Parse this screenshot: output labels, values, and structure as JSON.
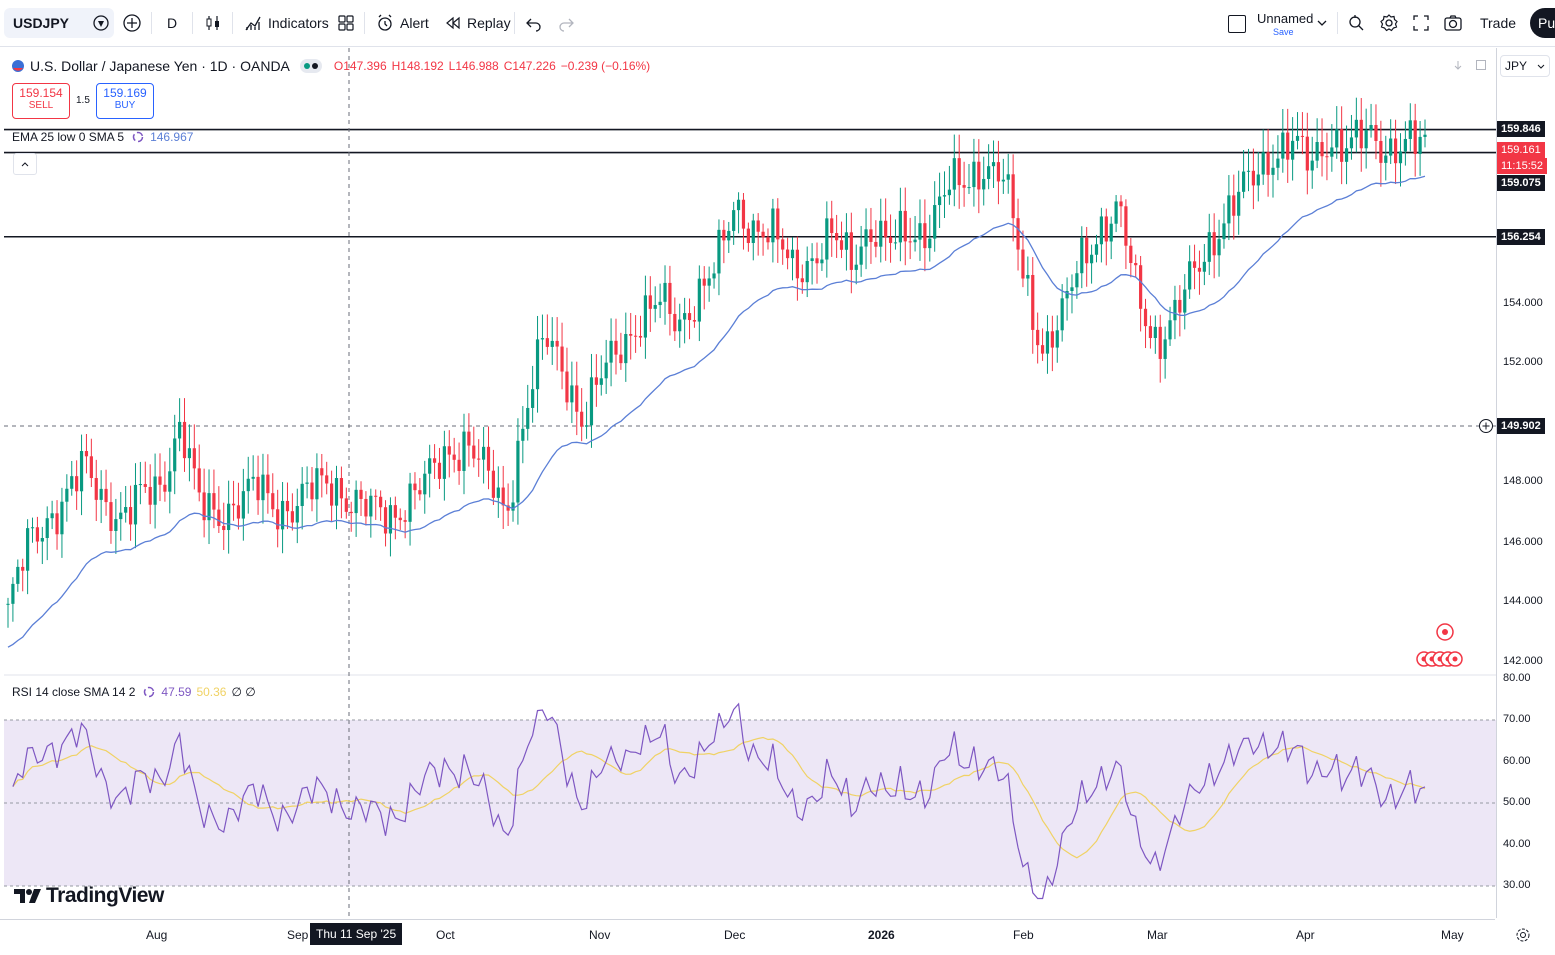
{
  "toolbar": {
    "symbol": "USDJPY",
    "interval": "D",
    "indicators_label": "Indicators",
    "alert_label": "Alert",
    "replay_label": "Replay",
    "layout_name": "Unnamed",
    "save_label": "Save",
    "trade_label": "Trade",
    "publish_label": "Pu"
  },
  "legend": {
    "title": "U.S. Dollar / Japanese Yen · 1D · OANDA",
    "open": "O147.396",
    "high": "H148.192",
    "low": "L146.988",
    "close": "C147.226",
    "change": "−0.239 (−0.16%)",
    "sell_price": "159.154",
    "sell_label": "SELL",
    "spread": "1.5",
    "buy_price": "159.169",
    "buy_label": "BUY",
    "ema_label": "EMA 25 low 0 SMA 5",
    "ema_value": "146.967",
    "rsi_label": "RSI 14 close SMA 14 2",
    "rsi_value": "47.59",
    "rsi_sma_value": "50.36",
    "rsi_extra": "∅ ∅"
  },
  "currency": "JPY",
  "price_axis": [
    "154.000",
    "152.000",
    "148.000",
    "146.000",
    "144.000",
    "142.000"
  ],
  "rsi_axis": [
    "80.00",
    "70.00",
    "60.00",
    "50.00",
    "40.00",
    "30.00"
  ],
  "price_tags": {
    "h1": "159.846",
    "last": "159.161",
    "countdown": "11:15:52",
    "h2": "159.075",
    "h3": "156.254",
    "crosshair": "149.902"
  },
  "time_axis": [
    "Aug",
    "Sep",
    "Oct",
    "Nov",
    "Dec",
    "2026",
    "Feb",
    "Mar",
    "Apr",
    "May"
  ],
  "crosshair_date": "Thu 11 Sep '25",
  "brand": "TradingView",
  "colors": {
    "up": "#089981",
    "down": "#f23645",
    "ema": "#5b7fd6",
    "rsi": "#7e57c2",
    "rsi_sma": "#f0d264",
    "rsi_band": "#ede7f6"
  },
  "chart_data": {
    "type": "candlestick",
    "symbol": "USDJPY",
    "timeframe": "1D",
    "ylim": [
      141,
      162
    ],
    "horizontal_lines": [
      159.846,
      159.075,
      156.254
    ],
    "close_series": [
      {
        "x": "Jul",
        "y": 143.7
      },
      {
        "x": "Jul",
        "y": 145.8
      },
      {
        "x": "Jul",
        "y": 146.8
      },
      {
        "x": "Jul",
        "y": 147.5
      },
      {
        "x": "Jul",
        "y": 148.5
      },
      {
        "x": "Aug",
        "y": 147.5
      },
      {
        "x": "Aug",
        "y": 146.8
      },
      {
        "x": "Aug",
        "y": 147.5
      },
      {
        "x": "Aug",
        "y": 148.0
      },
      {
        "x": "Aug",
        "y": 150.0
      },
      {
        "x": "Aug",
        "y": 147.2
      },
      {
        "x": "Aug",
        "y": 147.0
      },
      {
        "x": "Aug",
        "y": 147.4
      },
      {
        "x": "Aug",
        "y": 147.8
      },
      {
        "x": "Aug",
        "y": 147.2
      },
      {
        "x": "Sep",
        "y": 147.3
      },
      {
        "x": "Sep",
        "y": 147.8
      },
      {
        "x": "Sep",
        "y": 148.0
      },
      {
        "x": "Sep",
        "y": 147.4
      },
      {
        "x": "Sep",
        "y": 147.0
      },
      {
        "x": "Sep",
        "y": 146.9
      },
      {
        "x": "Sep",
        "y": 147.6
      },
      {
        "x": "Sep",
        "y": 148.1
      },
      {
        "x": "Sep",
        "y": 149.0
      },
      {
        "x": "Oct",
        "y": 149.5
      },
      {
        "x": "Oct",
        "y": 148.2
      },
      {
        "x": "Oct",
        "y": 146.9
      },
      {
        "x": "Oct",
        "y": 150.5
      },
      {
        "x": "Oct",
        "y": 152.8
      },
      {
        "x": "Oct",
        "y": 151.8
      },
      {
        "x": "Oct",
        "y": 150.2
      },
      {
        "x": "Oct",
        "y": 151.5
      },
      {
        "x": "Oct",
        "y": 152.6
      },
      {
        "x": "Nov",
        "y": 153.6
      },
      {
        "x": "Nov",
        "y": 154.0
      },
      {
        "x": "Nov",
        "y": 153.3
      },
      {
        "x": "Nov",
        "y": 154.4
      },
      {
        "x": "Nov",
        "y": 155.2
      },
      {
        "x": "Nov",
        "y": 157.3
      },
      {
        "x": "Nov",
        "y": 156.6
      },
      {
        "x": "Nov",
        "y": 156.2
      },
      {
        "x": "Dec",
        "y": 155.2
      },
      {
        "x": "Dec",
        "y": 155.6
      },
      {
        "x": "Dec",
        "y": 156.2
      },
      {
        "x": "Dec",
        "y": 155.4
      },
      {
        "x": "Dec",
        "y": 156.7
      },
      {
        "x": "Dec",
        "y": 155.9
      },
      {
        "x": "Dec",
        "y": 156.3
      },
      {
        "x": "Dec",
        "y": 156.6
      },
      {
        "x": "Dec",
        "y": 157.8
      },
      {
        "x": "Jan",
        "y": 158.0
      },
      {
        "x": "Jan",
        "y": 158.8
      },
      {
        "x": "Jan",
        "y": 158.2
      },
      {
        "x": "Jan",
        "y": 155.0
      },
      {
        "x": "Jan",
        "y": 152.6
      },
      {
        "x": "Jan",
        "y": 153.4
      },
      {
        "x": "Feb",
        "y": 155.4
      },
      {
        "x": "Feb",
        "y": 156.6
      },
      {
        "x": "Feb",
        "y": 157.1
      },
      {
        "x": "Feb",
        "y": 154.2
      },
      {
        "x": "Feb",
        "y": 152.8
      },
      {
        "x": "Feb",
        "y": 153.6
      },
      {
        "x": "Feb",
        "y": 155.1
      },
      {
        "x": "Feb",
        "y": 156.4
      },
      {
        "x": "Mar",
        "y": 157.3
      },
      {
        "x": "Mar",
        "y": 158.2
      },
      {
        "x": "Mar",
        "y": 159.1
      },
      {
        "x": "Mar",
        "y": 159.4
      },
      {
        "x": "Mar",
        "y": 158.6
      },
      {
        "x": "Mar",
        "y": 159.7
      },
      {
        "x": "Apr",
        "y": 159.2
      },
      {
        "x": "Apr",
        "y": 159.6
      },
      {
        "x": "Apr",
        "y": 159.3
      },
      {
        "x": "Apr",
        "y": 159.4
      },
      {
        "x": "Apr",
        "y": 159.2
      }
    ]
  }
}
